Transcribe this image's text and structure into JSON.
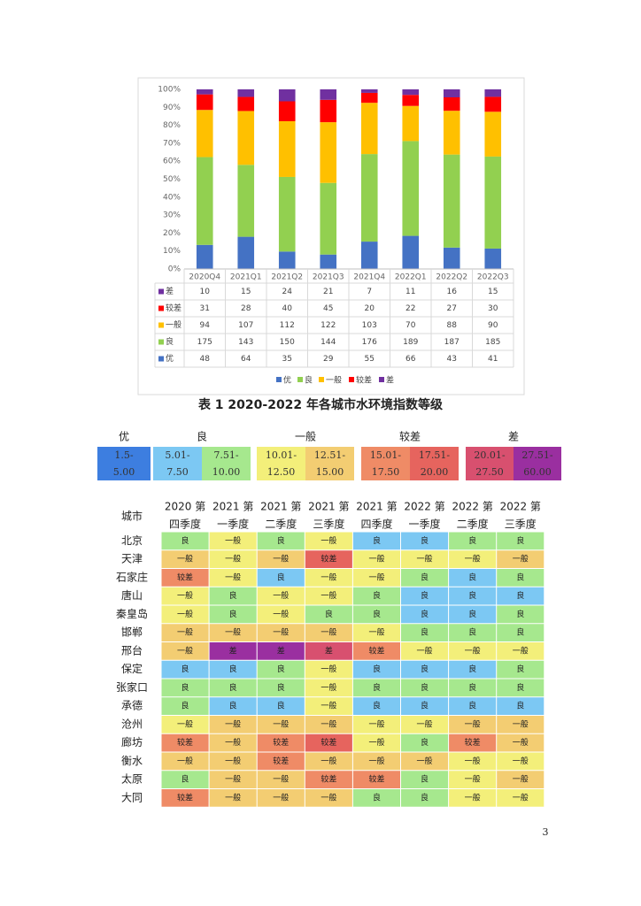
{
  "chart_data": {
    "type": "bar",
    "stacked": "percent",
    "categories": [
      "2020Q4",
      "2021Q1",
      "2021Q2",
      "2021Q3",
      "2021Q4",
      "2022Q1",
      "2022Q2",
      "2022Q3"
    ],
    "series": [
      {
        "name": "优",
        "color": "#4472c4",
        "values": [
          48,
          64,
          35,
          29,
          55,
          66,
          43,
          41
        ]
      },
      {
        "name": "良",
        "color": "#92d050",
        "values": [
          175,
          143,
          150,
          144,
          176,
          189,
          187,
          185
        ]
      },
      {
        "name": "一般",
        "color": "#ffc000",
        "values": [
          94,
          107,
          112,
          122,
          103,
          70,
          88,
          90
        ]
      },
      {
        "name": "较差",
        "color": "#ff0000",
        "values": [
          31,
          28,
          40,
          45,
          20,
          22,
          27,
          30
        ]
      },
      {
        "name": "差",
        "color": "#7030a0",
        "values": [
          10,
          15,
          24,
          21,
          7,
          11,
          16,
          15
        ]
      }
    ],
    "ylim": [
      0,
      100
    ],
    "yticks": [
      {
        "value": 0,
        "label": "0%"
      },
      {
        "value": 10,
        "label": "10%"
      },
      {
        "value": 20,
        "label": "20%"
      },
      {
        "value": 30,
        "label": "30%"
      },
      {
        "value": 40,
        "label": "40%"
      },
      {
        "value": 50,
        "label": "50%"
      },
      {
        "value": 60,
        "label": "60%"
      },
      {
        "value": 70,
        "label": "70%"
      },
      {
        "value": 80,
        "label": "80%"
      },
      {
        "value": 90,
        "label": "90%"
      },
      {
        "value": 100,
        "label": "100%"
      }
    ],
    "grid": false
  },
  "caption": "表 1 2020-2022 年各城市水环境指数等级",
  "levels": [
    {
      "name": "优",
      "ranges": [
        {
          "lines": [
            "1.5-",
            "5.00"
          ],
          "color": "#3d7ee0"
        }
      ]
    },
    {
      "name": "良",
      "ranges": [
        {
          "lines": [
            "5.01-",
            "7.50"
          ],
          "color": "#7cc8f3"
        },
        {
          "lines": [
            "7.51-",
            "10.00"
          ],
          "color": "#a6e88e"
        }
      ]
    },
    {
      "name": "一般",
      "ranges": [
        {
          "lines": [
            "10.01-",
            "12.50"
          ],
          "color": "#f3ef7a"
        },
        {
          "lines": [
            "12.51-",
            "15.00"
          ],
          "color": "#f3cd72"
        }
      ]
    },
    {
      "name": "较差",
      "ranges": [
        {
          "lines": [
            "15.01-",
            "17.50"
          ],
          "color": "#ef8b66"
        },
        {
          "lines": [
            "17.51-",
            "20.00"
          ],
          "color": "#e6645e"
        }
      ]
    },
    {
      "name": "差",
      "ranges": [
        {
          "lines": [
            "20.01-",
            "27.50"
          ],
          "color": "#d8506f"
        },
        {
          "lines": [
            "27.51-",
            "60.00"
          ],
          "color": "#9a2fa0"
        }
      ]
    }
  ],
  "table": {
    "header": {
      "city": "城市",
      "columns": [
        [
          "2020 第",
          "四季度"
        ],
        [
          "2021 第",
          "一季度"
        ],
        [
          "2021 第",
          "二季度"
        ],
        [
          "2021 第",
          "三季度"
        ],
        [
          "2021 第",
          "四季度"
        ],
        [
          "2022 第",
          "一季度"
        ],
        [
          "2022 第",
          "二季度"
        ],
        [
          "2022 第",
          "三季度"
        ]
      ]
    },
    "rows": [
      {
        "city": "北京",
        "cells": [
          "良",
          "一般",
          "良",
          "一般",
          "良",
          "良",
          "良",
          "良"
        ],
        "fills": [
          "#a6e88e",
          "#f3ef7a",
          "#a6e88e",
          "#f3ef7a",
          "#7cc8f3",
          "#7cc8f3",
          "#a6e88e",
          "#a6e88e"
        ]
      },
      {
        "city": "天津",
        "cells": [
          "一般",
          "一般",
          "一般",
          "较差",
          "一般",
          "一般",
          "一般",
          "一般"
        ],
        "fills": [
          "#f3cd72",
          "#f3ef7a",
          "#f3cd72",
          "#e6645e",
          "#f3ef7a",
          "#f3ef7a",
          "#f3ef7a",
          "#f3cd72"
        ]
      },
      {
        "city": "石家庄",
        "cells": [
          "较差",
          "一般",
          "良",
          "一般",
          "一般",
          "良",
          "良",
          "良"
        ],
        "fills": [
          "#ef8b66",
          "#f3ef7a",
          "#7cc8f3",
          "#f3ef7a",
          "#f3ef7a",
          "#a6e88e",
          "#7cc8f3",
          "#a6e88e"
        ]
      },
      {
        "city": "唐山",
        "cells": [
          "一般",
          "良",
          "一般",
          "一般",
          "良",
          "良",
          "良",
          "良"
        ],
        "fills": [
          "#f3ef7a",
          "#a6e88e",
          "#f3ef7a",
          "#f3ef7a",
          "#a6e88e",
          "#7cc8f3",
          "#7cc8f3",
          "#7cc8f3"
        ]
      },
      {
        "city": "秦皇岛",
        "cells": [
          "一般",
          "良",
          "一般",
          "良",
          "良",
          "良",
          "良",
          "良"
        ],
        "fills": [
          "#f3ef7a",
          "#a6e88e",
          "#f3ef7a",
          "#a6e88e",
          "#a6e88e",
          "#7cc8f3",
          "#7cc8f3",
          "#a6e88e"
        ]
      },
      {
        "city": "邯郸",
        "cells": [
          "一般",
          "一般",
          "一般",
          "一般",
          "一般",
          "良",
          "良",
          "良"
        ],
        "fills": [
          "#f3cd72",
          "#f3cd72",
          "#f3cd72",
          "#f3cd72",
          "#f3ef7a",
          "#a6e88e",
          "#a6e88e",
          "#a6e88e"
        ]
      },
      {
        "city": "邢台",
        "cells": [
          "一般",
          "差",
          "差",
          "差",
          "较差",
          "一般",
          "一般",
          "一般"
        ],
        "fills": [
          "#f3cd72",
          "#9a2fa0",
          "#9a2fa0",
          "#d8506f",
          "#ef8b66",
          "#f3ef7a",
          "#f3ef7a",
          "#f3ef7a"
        ]
      },
      {
        "city": "保定",
        "cells": [
          "良",
          "良",
          "良",
          "一般",
          "良",
          "良",
          "良",
          "良"
        ],
        "fills": [
          "#7cc8f3",
          "#7cc8f3",
          "#a6e88e",
          "#f3ef7a",
          "#7cc8f3",
          "#7cc8f3",
          "#7cc8f3",
          "#a6e88e"
        ]
      },
      {
        "city": "张家口",
        "cells": [
          "良",
          "良",
          "良",
          "一般",
          "良",
          "良",
          "良",
          "良"
        ],
        "fills": [
          "#a6e88e",
          "#a6e88e",
          "#a6e88e",
          "#f3ef7a",
          "#a6e88e",
          "#a6e88e",
          "#a6e88e",
          "#a6e88e"
        ]
      },
      {
        "city": "承德",
        "cells": [
          "良",
          "良",
          "良",
          "一般",
          "良",
          "良",
          "良",
          "良"
        ],
        "fills": [
          "#a6e88e",
          "#7cc8f3",
          "#7cc8f3",
          "#f3ef7a",
          "#7cc8f3",
          "#7cc8f3",
          "#7cc8f3",
          "#7cc8f3"
        ]
      },
      {
        "city": "沧州",
        "cells": [
          "一般",
          "一般",
          "一般",
          "一般",
          "一般",
          "一般",
          "一般",
          "一般"
        ],
        "fills": [
          "#f3ef7a",
          "#f3cd72",
          "#f3cd72",
          "#f3cd72",
          "#f3ef7a",
          "#f3ef7a",
          "#f3cd72",
          "#f3cd72"
        ]
      },
      {
        "city": "廊坊",
        "cells": [
          "较差",
          "一般",
          "较差",
          "较差",
          "一般",
          "良",
          "较差",
          "一般"
        ],
        "fills": [
          "#ef8b66",
          "#f3cd72",
          "#ef8b66",
          "#e6645e",
          "#f3ef7a",
          "#a6e88e",
          "#ef8b66",
          "#f3cd72"
        ]
      },
      {
        "city": "衡水",
        "cells": [
          "一般",
          "一般",
          "较差",
          "一般",
          "一般",
          "一般",
          "一般",
          "一般"
        ],
        "fills": [
          "#f3cd72",
          "#f3cd72",
          "#ef8b66",
          "#f3cd72",
          "#f3cd72",
          "#f3cd72",
          "#f3ef7a",
          "#f3ef7a"
        ]
      },
      {
        "city": "太原",
        "cells": [
          "良",
          "一般",
          "一般",
          "较差",
          "较差",
          "良",
          "一般",
          "一般"
        ],
        "fills": [
          "#a6e88e",
          "#f3cd72",
          "#f3cd72",
          "#ef8b66",
          "#ef8b66",
          "#a6e88e",
          "#f3ef7a",
          "#f3cd72"
        ]
      },
      {
        "city": "大同",
        "cells": [
          "较差",
          "一般",
          "一般",
          "一般",
          "良",
          "良",
          "一般",
          "一般"
        ],
        "fills": [
          "#ef8b66",
          "#f3cd72",
          "#f3cd72",
          "#f3cd72",
          "#a6e88e",
          "#a6e88e",
          "#f3ef7a",
          "#f3ef7a"
        ]
      }
    ]
  },
  "page_number": "3"
}
